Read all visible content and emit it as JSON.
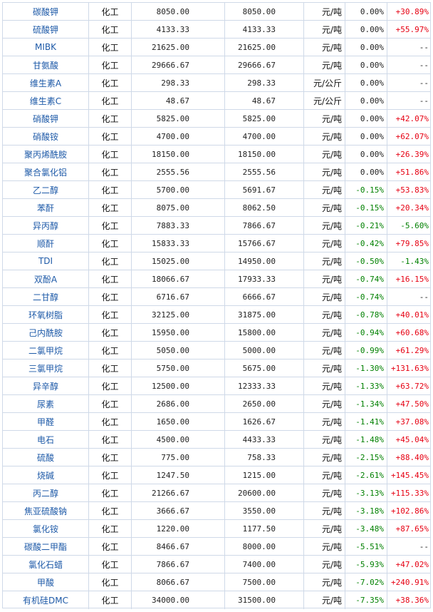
{
  "colors": {
    "link": "#1e5aa8",
    "up": "#e60012",
    "down": "#008000",
    "neutral": "#222222",
    "border": "#cfd9e8"
  },
  "rows": [
    {
      "name": "碳酸钾",
      "category": "化工",
      "price1": "8050.00",
      "price2": "8050.00",
      "unit": "元/吨",
      "change": "0.00%",
      "yoy": "+30.89%"
    },
    {
      "name": "硫酸钾",
      "category": "化工",
      "price1": "4133.33",
      "price2": "4133.33",
      "unit": "元/吨",
      "change": "0.00%",
      "yoy": "+55.97%"
    },
    {
      "name": "MIBK",
      "category": "化工",
      "price1": "21625.00",
      "price2": "21625.00",
      "unit": "元/吨",
      "change": "0.00%",
      "yoy": "--"
    },
    {
      "name": "甘氨酸",
      "category": "化工",
      "price1": "29666.67",
      "price2": "29666.67",
      "unit": "元/吨",
      "change": "0.00%",
      "yoy": "--"
    },
    {
      "name": "维生素A",
      "category": "化工",
      "price1": "298.33",
      "price2": "298.33",
      "unit": "元/公斤",
      "change": "0.00%",
      "yoy": "--"
    },
    {
      "name": "维生素C",
      "category": "化工",
      "price1": "48.67",
      "price2": "48.67",
      "unit": "元/公斤",
      "change": "0.00%",
      "yoy": "--"
    },
    {
      "name": "硝酸钾",
      "category": "化工",
      "price1": "5825.00",
      "price2": "5825.00",
      "unit": "元/吨",
      "change": "0.00%",
      "yoy": "+42.07%"
    },
    {
      "name": "硝酸铵",
      "category": "化工",
      "price1": "4700.00",
      "price2": "4700.00",
      "unit": "元/吨",
      "change": "0.00%",
      "yoy": "+62.07%"
    },
    {
      "name": "聚丙烯酰胺",
      "category": "化工",
      "price1": "18150.00",
      "price2": "18150.00",
      "unit": "元/吨",
      "change": "0.00%",
      "yoy": "+26.39%"
    },
    {
      "name": "聚合氯化铝",
      "category": "化工",
      "price1": "2555.56",
      "price2": "2555.56",
      "unit": "元/吨",
      "change": "0.00%",
      "yoy": "+51.86%"
    },
    {
      "name": "乙二醇",
      "category": "化工",
      "price1": "5700.00",
      "price2": "5691.67",
      "unit": "元/吨",
      "change": "-0.15%",
      "yoy": "+53.83%"
    },
    {
      "name": "苯酐",
      "category": "化工",
      "price1": "8075.00",
      "price2": "8062.50",
      "unit": "元/吨",
      "change": "-0.15%",
      "yoy": "+20.34%"
    },
    {
      "name": "异丙醇",
      "category": "化工",
      "price1": "7883.33",
      "price2": "7866.67",
      "unit": "元/吨",
      "change": "-0.21%",
      "yoy": "-5.60%"
    },
    {
      "name": "顺酐",
      "category": "化工",
      "price1": "15833.33",
      "price2": "15766.67",
      "unit": "元/吨",
      "change": "-0.42%",
      "yoy": "+79.85%"
    },
    {
      "name": "TDI",
      "category": "化工",
      "price1": "15025.00",
      "price2": "14950.00",
      "unit": "元/吨",
      "change": "-0.50%",
      "yoy": "-1.43%"
    },
    {
      "name": "双酚A",
      "category": "化工",
      "price1": "18066.67",
      "price2": "17933.33",
      "unit": "元/吨",
      "change": "-0.74%",
      "yoy": "+16.15%"
    },
    {
      "name": "二甘醇",
      "category": "化工",
      "price1": "6716.67",
      "price2": "6666.67",
      "unit": "元/吨",
      "change": "-0.74%",
      "yoy": "--"
    },
    {
      "name": "环氧树脂",
      "category": "化工",
      "price1": "32125.00",
      "price2": "31875.00",
      "unit": "元/吨",
      "change": "-0.78%",
      "yoy": "+40.01%"
    },
    {
      "name": "己内酰胺",
      "category": "化工",
      "price1": "15950.00",
      "price2": "15800.00",
      "unit": "元/吨",
      "change": "-0.94%",
      "yoy": "+60.68%"
    },
    {
      "name": "二氯甲烷",
      "category": "化工",
      "price1": "5050.00",
      "price2": "5000.00",
      "unit": "元/吨",
      "change": "-0.99%",
      "yoy": "+61.29%"
    },
    {
      "name": "三氯甲烷",
      "category": "化工",
      "price1": "5750.00",
      "price2": "5675.00",
      "unit": "元/吨",
      "change": "-1.30%",
      "yoy": "+131.63%"
    },
    {
      "name": "异辛醇",
      "category": "化工",
      "price1": "12500.00",
      "price2": "12333.33",
      "unit": "元/吨",
      "change": "-1.33%",
      "yoy": "+63.72%"
    },
    {
      "name": "尿素",
      "category": "化工",
      "price1": "2686.00",
      "price2": "2650.00",
      "unit": "元/吨",
      "change": "-1.34%",
      "yoy": "+47.50%"
    },
    {
      "name": "甲醛",
      "category": "化工",
      "price1": "1650.00",
      "price2": "1626.67",
      "unit": "元/吨",
      "change": "-1.41%",
      "yoy": "+37.08%"
    },
    {
      "name": "电石",
      "category": "化工",
      "price1": "4500.00",
      "price2": "4433.33",
      "unit": "元/吨",
      "change": "-1.48%",
      "yoy": "+45.04%"
    },
    {
      "name": "硫酸",
      "category": "化工",
      "price1": "775.00",
      "price2": "758.33",
      "unit": "元/吨",
      "change": "-2.15%",
      "yoy": "+88.40%"
    },
    {
      "name": "烧碱",
      "category": "化工",
      "price1": "1247.50",
      "price2": "1215.00",
      "unit": "元/吨",
      "change": "-2.61%",
      "yoy": "+145.45%"
    },
    {
      "name": "丙二醇",
      "category": "化工",
      "price1": "21266.67",
      "price2": "20600.00",
      "unit": "元/吨",
      "change": "-3.13%",
      "yoy": "+115.33%"
    },
    {
      "name": "焦亚硫酸钠",
      "category": "化工",
      "price1": "3666.67",
      "price2": "3550.00",
      "unit": "元/吨",
      "change": "-3.18%",
      "yoy": "+102.86%"
    },
    {
      "name": "氯化铵",
      "category": "化工",
      "price1": "1220.00",
      "price2": "1177.50",
      "unit": "元/吨",
      "change": "-3.48%",
      "yoy": "+87.65%"
    },
    {
      "name": "碳酸二甲酯",
      "category": "化工",
      "price1": "8466.67",
      "price2": "8000.00",
      "unit": "元/吨",
      "change": "-5.51%",
      "yoy": "--"
    },
    {
      "name": "氯化石蜡",
      "category": "化工",
      "price1": "7866.67",
      "price2": "7400.00",
      "unit": "元/吨",
      "change": "-5.93%",
      "yoy": "+47.02%"
    },
    {
      "name": "甲酸",
      "category": "化工",
      "price1": "8066.67",
      "price2": "7500.00",
      "unit": "元/吨",
      "change": "-7.02%",
      "yoy": "+240.91%"
    },
    {
      "name": "有机硅DMC",
      "category": "化工",
      "price1": "34000.00",
      "price2": "31500.00",
      "unit": "元/吨",
      "change": "-7.35%",
      "yoy": "+38.36%"
    }
  ]
}
